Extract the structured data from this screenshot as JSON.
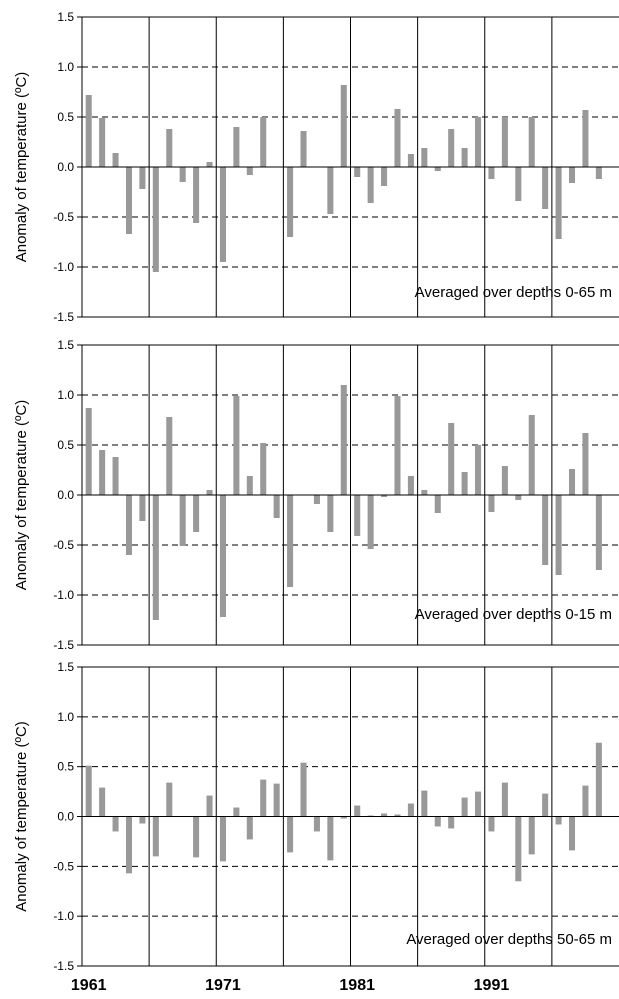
{
  "chart_data": [
    {
      "type": "bar",
      "annotation": "Averaged over depths 0-65 m",
      "ylabel": "Anomaly of temperature (ºC)",
      "ylim": [
        -1.5,
        1.5
      ],
      "yticks": [
        "1.5",
        "1.0",
        "0.5",
        "0.0",
        "-0.5",
        "-1.0",
        "-1.5"
      ],
      "x": [
        1961,
        1962,
        1963,
        1964,
        1965,
        1966,
        1967,
        1968,
        1969,
        1970,
        1971,
        1972,
        1973,
        1974,
        1975,
        1976,
        1977,
        1978,
        1979,
        1980,
        1981,
        1982,
        1983,
        1984,
        1985,
        1986,
        1987,
        1988,
        1989,
        1990,
        1991,
        1992,
        1993,
        1994,
        1995,
        1996,
        1997,
        1998,
        1999,
        2000
      ],
      "values": [
        0.72,
        0.49,
        0.14,
        -0.67,
        -0.22,
        -1.05,
        0.38,
        -0.15,
        -0.56,
        0.05,
        -0.95,
        0.4,
        -0.08,
        0.5,
        0.0,
        -0.7,
        0.36,
        0.0,
        -0.47,
        0.82,
        -0.1,
        -0.36,
        -0.19,
        0.58,
        0.13,
        0.19,
        -0.04,
        0.38,
        0.19,
        0.5,
        -0.12,
        0.5,
        -0.34,
        0.5,
        -0.42,
        -0.72,
        -0.16,
        0.57,
        -0.12,
        0.0
      ],
      "grid": true
    },
    {
      "type": "bar",
      "annotation": "Averaged over depths 0-15 m",
      "ylabel": "Anomaly of temperature (ºC)",
      "ylim": [
        -1.5,
        1.5
      ],
      "yticks": [
        "1.5",
        "1.0",
        "0.5",
        "0.0",
        "-0.5",
        "-1.0",
        "-1.5"
      ],
      "x": [
        1961,
        1962,
        1963,
        1964,
        1965,
        1966,
        1967,
        1968,
        1969,
        1970,
        1971,
        1972,
        1973,
        1974,
        1975,
        1976,
        1977,
        1978,
        1979,
        1980,
        1981,
        1982,
        1983,
        1984,
        1985,
        1986,
        1987,
        1988,
        1989,
        1990,
        1991,
        1992,
        1993,
        1994,
        1995,
        1996,
        1997,
        1998,
        1999,
        2000
      ],
      "values": [
        0.87,
        0.45,
        0.38,
        -0.6,
        -0.26,
        -1.25,
        0.78,
        -0.51,
        -0.37,
        0.05,
        -1.22,
        0.99,
        0.19,
        0.52,
        -0.23,
        -0.92,
        0.0,
        -0.09,
        -0.37,
        1.1,
        -0.41,
        -0.54,
        -0.02,
        0.99,
        0.19,
        0.05,
        -0.18,
        0.72,
        0.23,
        0.5,
        -0.17,
        0.29,
        -0.05,
        0.8,
        -0.7,
        -0.8,
        0.26,
        0.62,
        -0.75,
        0.0
      ],
      "grid": true
    },
    {
      "type": "bar",
      "annotation": "Averaged over depths 50-65 m",
      "ylabel": "Anomaly of temperature (ºC)",
      "ylim": [
        -1.5,
        1.5
      ],
      "yticks": [
        "1.5",
        "1.0",
        "0.5",
        "0.0",
        "-0.5",
        "-1.0",
        "-1.5"
      ],
      "x": [
        1961,
        1962,
        1963,
        1964,
        1965,
        1966,
        1967,
        1968,
        1969,
        1970,
        1971,
        1972,
        1973,
        1974,
        1975,
        1976,
        1977,
        1978,
        1979,
        1980,
        1981,
        1982,
        1983,
        1984,
        1985,
        1986,
        1987,
        1988,
        1989,
        1990,
        1991,
        1992,
        1993,
        1994,
        1995,
        1996,
        1997,
        1998,
        1999,
        2000
      ],
      "values": [
        0.51,
        0.29,
        -0.15,
        -0.57,
        -0.07,
        -0.4,
        0.34,
        0.0,
        -0.41,
        0.21,
        -0.45,
        0.09,
        -0.23,
        0.37,
        0.33,
        -0.36,
        0.54,
        -0.15,
        -0.44,
        -0.02,
        0.11,
        0.01,
        0.03,
        0.02,
        0.13,
        0.26,
        -0.1,
        -0.12,
        0.19,
        0.25,
        -0.15,
        0.34,
        -0.65,
        -0.38,
        0.23,
        -0.08,
        -0.34,
        0.31,
        0.74,
        0.0
      ],
      "grid": true
    }
  ],
  "x_axis_labels": [
    "1961",
    "1971",
    "1981",
    "1991"
  ],
  "colors": {
    "bar": "#999999",
    "axis": "#000000",
    "grid": "#000000"
  }
}
